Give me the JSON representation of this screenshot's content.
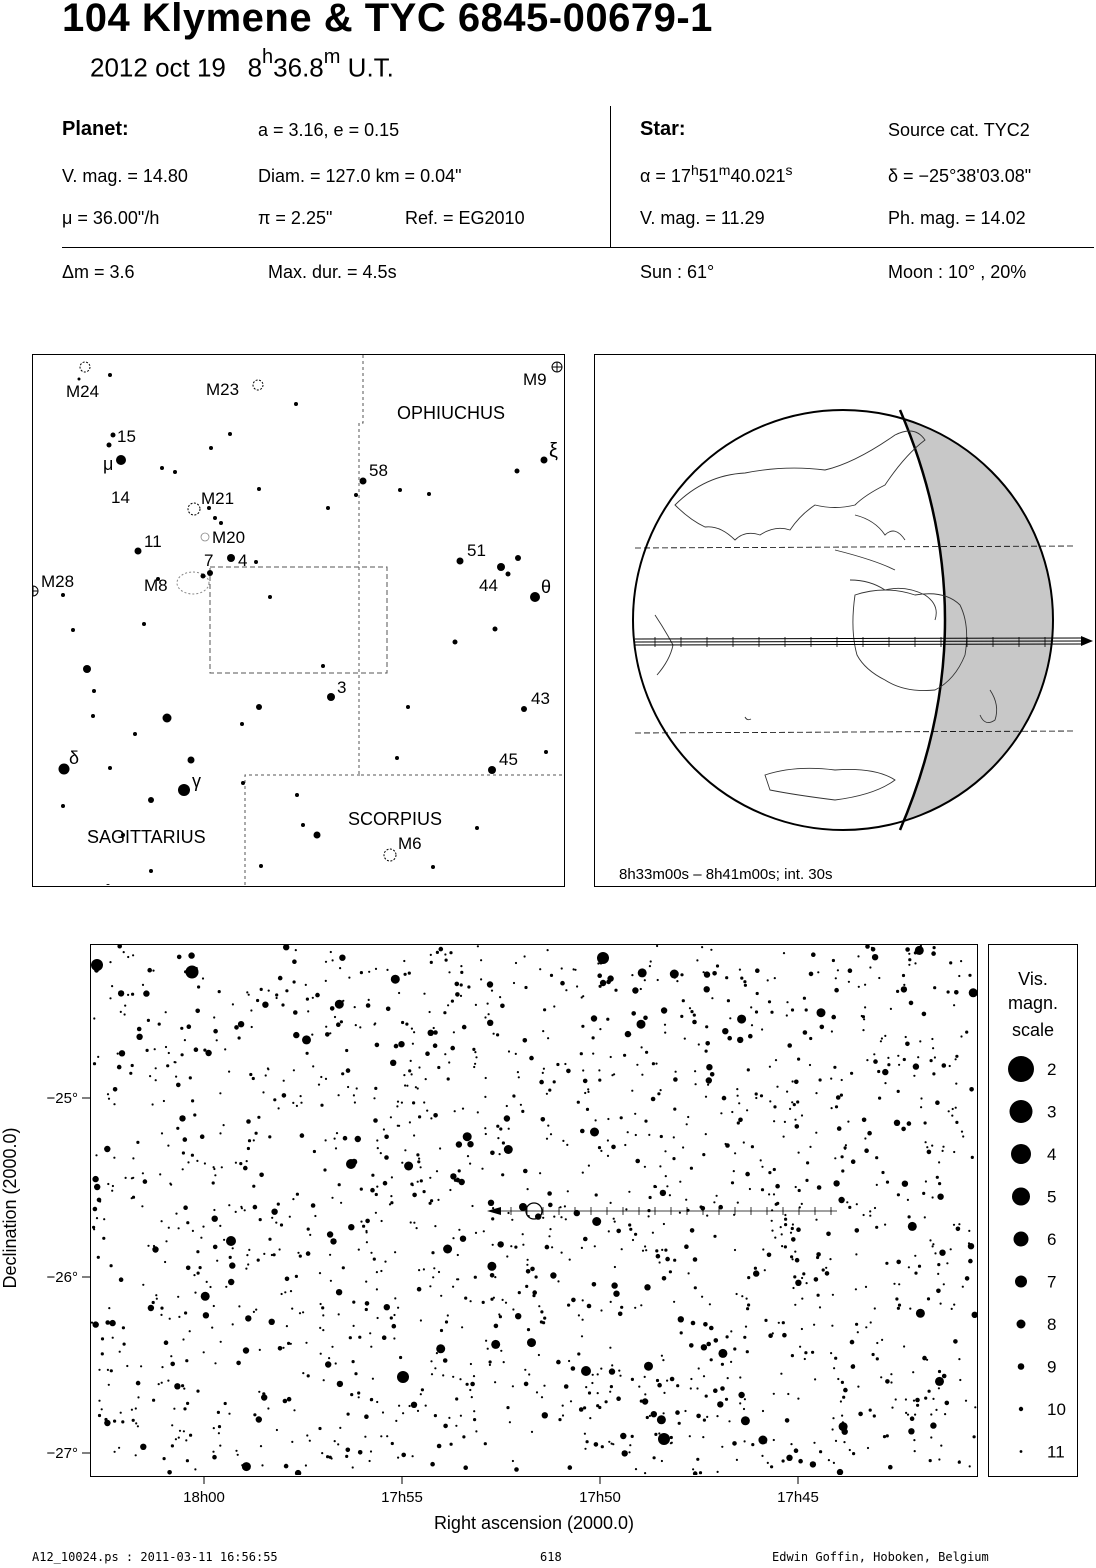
{
  "header": {
    "title": "104 Klymene  &  TYC 6845-00679-1",
    "date_text": "2012 oct 19",
    "time_hours": "8",
    "time_h": "h",
    "time_minutes": "36.8",
    "time_m": "m",
    "time_suffix": "U.T."
  },
  "info": {
    "planet_heading": "Planet:",
    "orbit": "a = 3.16, e = 0.15",
    "planet_vmag": "V. mag. = 14.80",
    "diameter": "Diam. = 127.0 km = 0.04\"",
    "motion": "μ =  36.00\"/h",
    "parallax": "π =  2.25\"",
    "reference": "Ref. = EG2010",
    "star_heading": "Star:",
    "source_catalog": "Source cat.  TYC2",
    "ra_prefix": "α = 17",
    "ra_h": "h",
    "ra_min": "51",
    "ra_m": "m",
    "ra_sec": "40.021",
    "ra_s": "s",
    "declination": "δ = −25°38'03.08\"",
    "star_vmag": "V. mag. = 11.29",
    "star_phmag": "Ph. mag. = 14.02",
    "delta_mag": "Δm = 3.6",
    "max_duration": "Max. dur. = 4.5s",
    "sun": "Sun :  61°",
    "moon": "Moon :  10° , 20%"
  },
  "finder_chart": {
    "labels": {
      "m24": "M24",
      "m23": "M23",
      "m9": "M9",
      "ophiuchus": "OPHIUCHUS",
      "n15": "15",
      "mu": "μ",
      "n14": "14",
      "xi": "ξ",
      "n58": "58",
      "m21": "M21",
      "n11": "11",
      "m20": "M20",
      "n7": "7",
      "n4": "4",
      "n51": "51",
      "m28": "M28",
      "m8": "M8",
      "n44": "44",
      "theta": "θ",
      "n3": "3",
      "n43": "43",
      "delta": "δ",
      "n45": "45",
      "gamma": "γ",
      "scorpius": "SCORPIUS",
      "m6": "M6",
      "sagittarius": "SAGITTARIUS"
    }
  },
  "globe": {
    "time_range": "8h33m00s –  8h41m00s; int. 30s"
  },
  "star_chart": {
    "xlabel": "Right ascension (2000.0)",
    "ylabel": "Declination (2000.0)",
    "x_ticks": [
      "18h00",
      "17h55",
      "17h50",
      "17h45"
    ],
    "y_ticks": [
      "−25°",
      "−26°",
      "−27°"
    ]
  },
  "legend": {
    "title_line1": "Vis.",
    "title_line2": "magn.",
    "title_line3": "scale",
    "magnitudes": [
      "2",
      "3",
      "4",
      "5",
      "6",
      "7",
      "8",
      "9",
      "10",
      "11"
    ]
  },
  "footer": {
    "left": "A12_10024.ps : 2011-03-11 16:56:55",
    "center": "618",
    "right": "Edwin Goffin, Hoboken, Belgium"
  }
}
